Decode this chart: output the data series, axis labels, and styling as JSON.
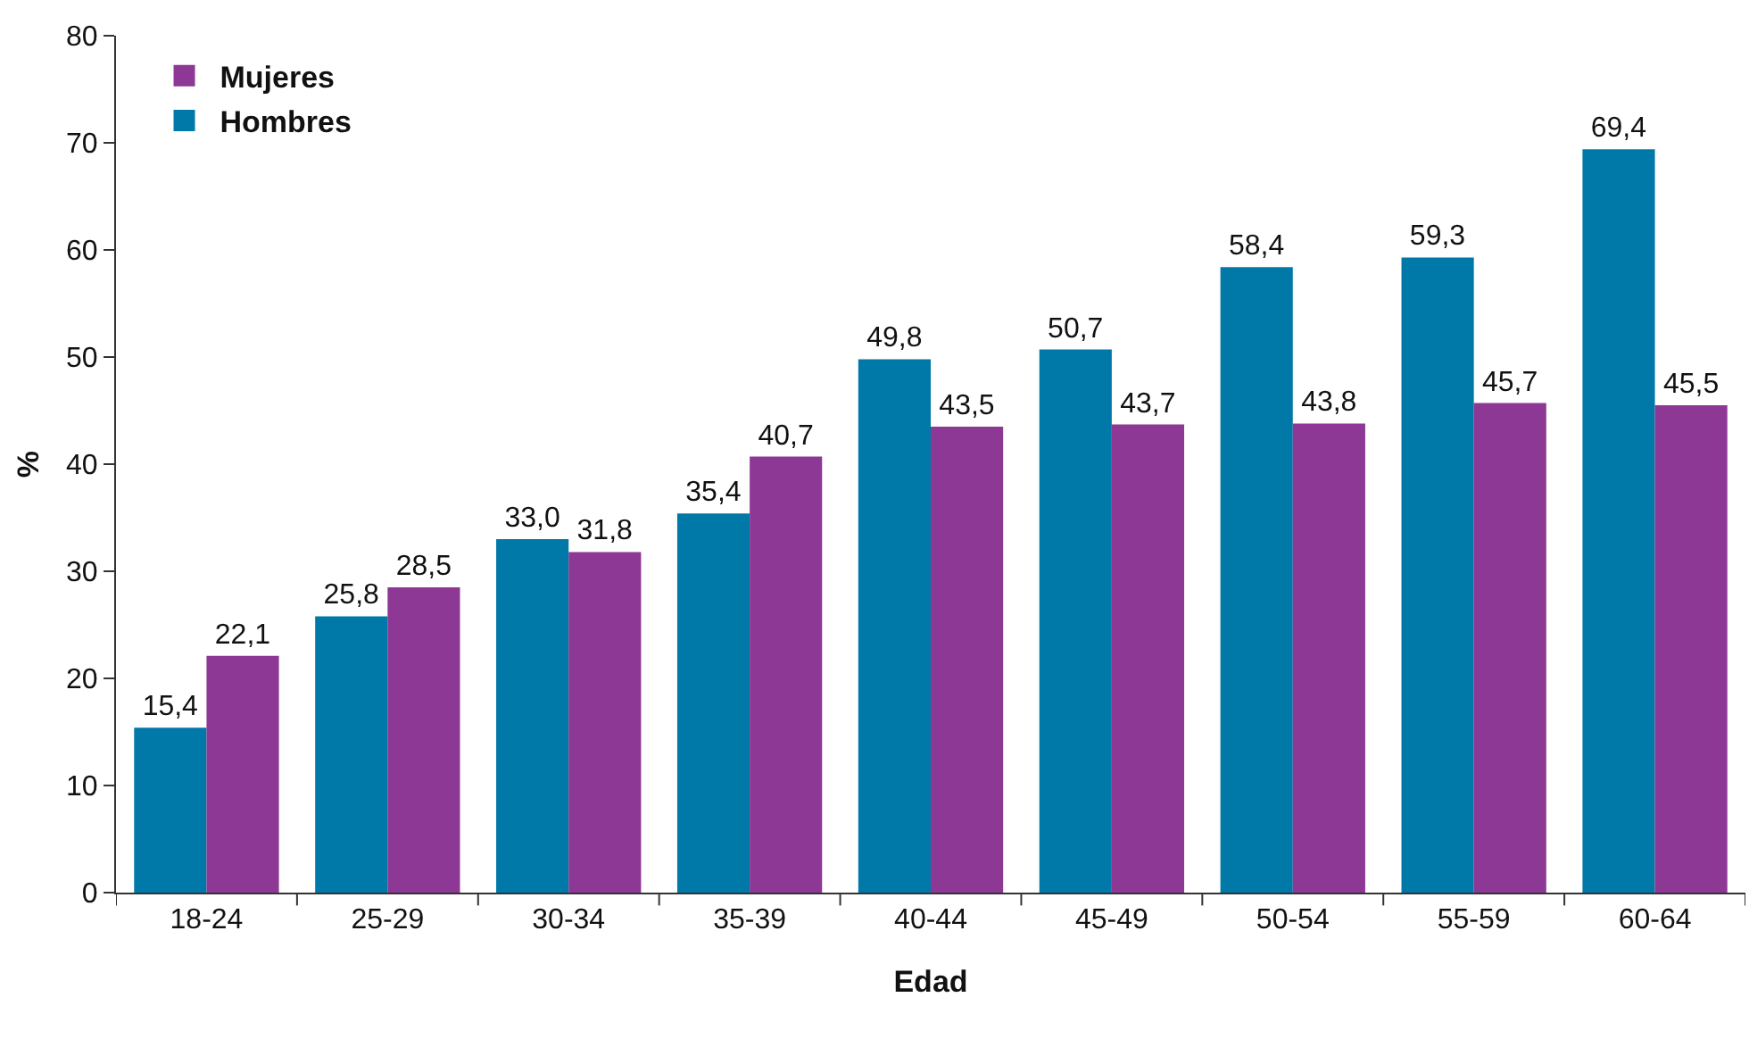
{
  "chart_data": {
    "type": "bar",
    "xlabel": "Edad",
    "ylabel": "%",
    "categories": [
      "18-24",
      "25-29",
      "30-34",
      "35-39",
      "40-44",
      "45-49",
      "50-54",
      "55-59",
      "60-64"
    ],
    "series": [
      {
        "name": "Hombres",
        "color": "#0078a8",
        "values": [
          15.4,
          25.8,
          33.0,
          35.4,
          49.8,
          50.7,
          58.4,
          59.3,
          69.4
        ],
        "value_labels": [
          "15,4",
          "25,8",
          "33,0",
          "35,4",
          "49,8",
          "50,7",
          "58,4",
          "59,3",
          "69,4"
        ]
      },
      {
        "name": "Mujeres",
        "color": "#8c3894",
        "values": [
          22.1,
          28.5,
          31.8,
          40.7,
          43.5,
          43.7,
          43.8,
          45.7,
          45.5
        ],
        "value_labels": [
          "22,1",
          "28,5",
          "31,8",
          "40,7",
          "43,5",
          "43,7",
          "43,8",
          "45,7",
          "45,5"
        ]
      }
    ],
    "ylim": [
      0,
      80
    ],
    "yticks": [
      0,
      10,
      20,
      30,
      40,
      50,
      60,
      70,
      80
    ],
    "grid": false,
    "legend": "top left"
  }
}
